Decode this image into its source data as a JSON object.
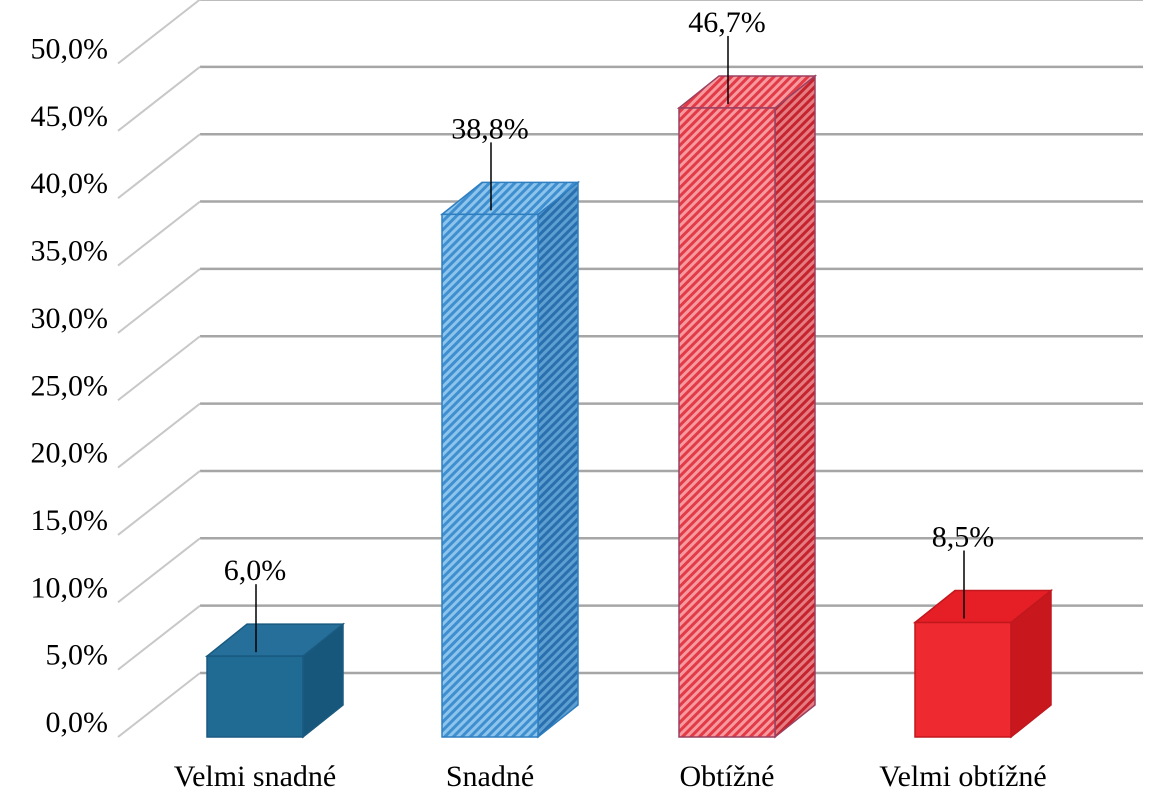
{
  "chart_data": {
    "type": "bar",
    "categories": [
      "Velmi snadné",
      "Snadné",
      "Obtížné",
      "Velmi obtížné"
    ],
    "values": [
      6.0,
      38.8,
      46.7,
      8.5
    ],
    "data_labels": [
      "6,0%",
      "38,8%",
      "46,7%",
      "8,5%"
    ],
    "yticks": [
      "0,0%",
      "5,0%",
      "10,0%",
      "15,0%",
      "20,0%",
      "25,0%",
      "30,0%",
      "35,0%",
      "40,0%",
      "45,0%",
      "50,0%"
    ],
    "ylim": [
      0,
      50
    ],
    "grid": true,
    "legend": "none",
    "three_d": true,
    "colors": [
      "#1f6b94",
      "#5aa6dc",
      "#e8505a",
      "#ee2a30"
    ]
  }
}
